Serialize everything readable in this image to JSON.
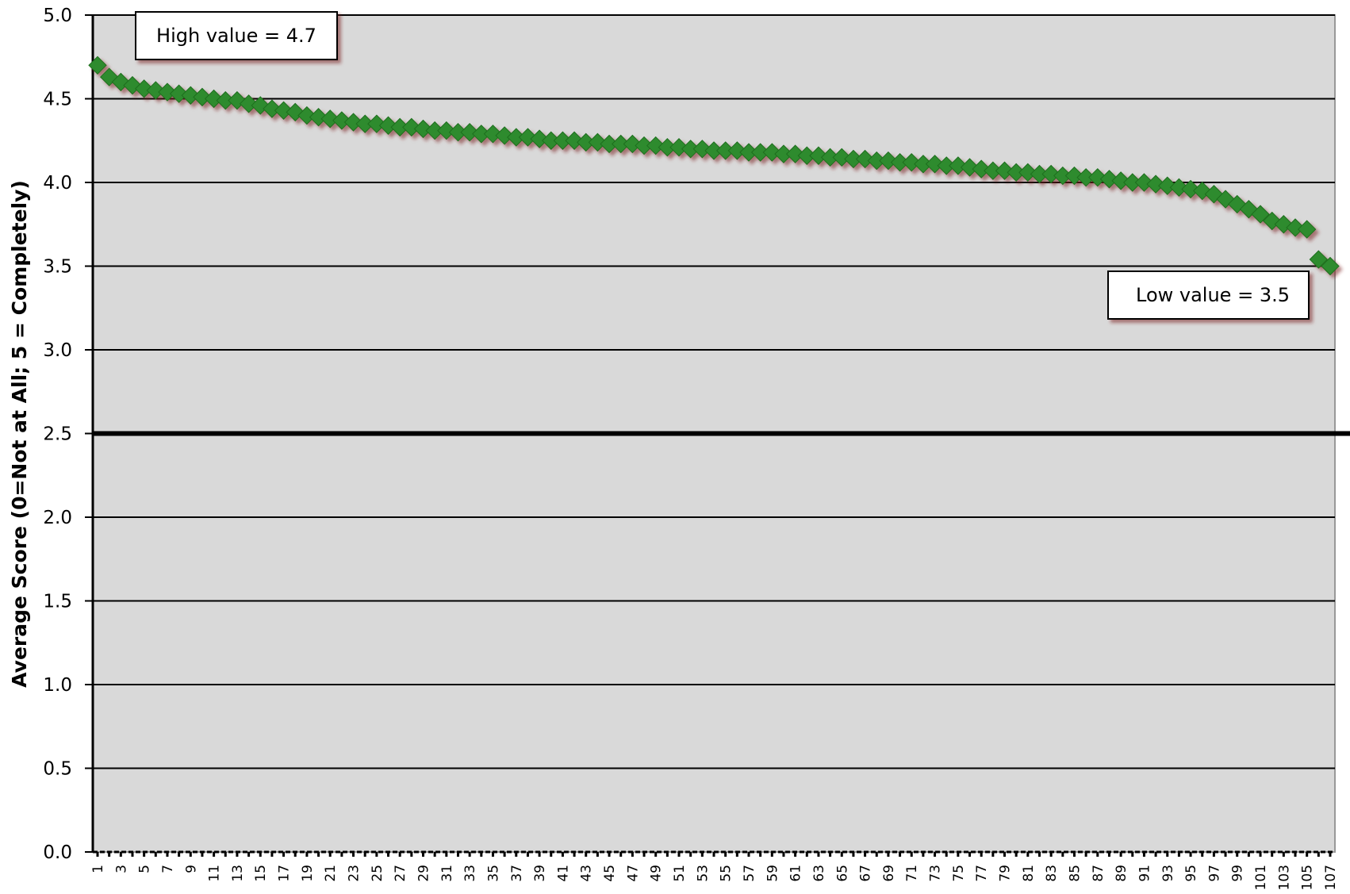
{
  "chart_data": {
    "type": "scatter",
    "title": "",
    "xlabel": "",
    "ylabel": "Average Score (0=Not at All; 5 = Completely)",
    "xlim": [
      1,
      107
    ],
    "ylim": [
      0,
      5
    ],
    "yticks": [
      "0.0",
      "0.5",
      "1.0",
      "1.5",
      "2.0",
      "2.5",
      "3.0",
      "3.5",
      "4.0",
      "4.5",
      "5.0"
    ],
    "xticks": [
      "1",
      "3",
      "5",
      "7",
      "9",
      "11",
      "13",
      "15",
      "17",
      "19",
      "21",
      "23",
      "25",
      "27",
      "29",
      "31",
      "33",
      "35",
      "37",
      "39",
      "41",
      "43",
      "45",
      "47",
      "49",
      "51",
      "53",
      "55",
      "57",
      "59",
      "61",
      "63",
      "65",
      "67",
      "69",
      "71",
      "73",
      "75",
      "77",
      "79",
      "81",
      "83",
      "85",
      "87",
      "89",
      "91",
      "93",
      "95",
      "97",
      "99",
      "101",
      "103",
      "105",
      "107"
    ],
    "grid": true,
    "reference_line": 2.5,
    "background_color": "#d9d9d9",
    "marker_color": "#2e8b2e",
    "reference_line_color": "#000000",
    "annotations": [
      {
        "text": "High value = 4.7"
      },
      {
        "text": "Low value = 3.5"
      }
    ],
    "series": [
      {
        "x": [
          1,
          2,
          3,
          4,
          5,
          6,
          7,
          8,
          9,
          10,
          11,
          12,
          13,
          14,
          15,
          16,
          17,
          18,
          19,
          20,
          21,
          22,
          23,
          24,
          25,
          26,
          27,
          28,
          29,
          30,
          31,
          32,
          33,
          34,
          35,
          36,
          37,
          38,
          39,
          40,
          41,
          42,
          43,
          44,
          45,
          46,
          47,
          48,
          49,
          50,
          51,
          52,
          53,
          54,
          55,
          56,
          57,
          58,
          59,
          60,
          61,
          62,
          63,
          64,
          65,
          66,
          67,
          68,
          69,
          70,
          71,
          72,
          73,
          74,
          75,
          76,
          77,
          78,
          79,
          80,
          81,
          82,
          83,
          84,
          85,
          86,
          87,
          88,
          89,
          90,
          91,
          92,
          93,
          94,
          95,
          96,
          97,
          98,
          99,
          100,
          101,
          102,
          103,
          104,
          105,
          106,
          107
        ],
        "values": [
          4.7,
          4.63,
          4.6,
          4.58,
          4.56,
          4.55,
          4.54,
          4.53,
          4.52,
          4.51,
          4.5,
          4.49,
          4.49,
          4.47,
          4.46,
          4.44,
          4.43,
          4.42,
          4.4,
          4.39,
          4.38,
          4.37,
          4.36,
          4.35,
          4.35,
          4.34,
          4.33,
          4.33,
          4.32,
          4.31,
          4.31,
          4.3,
          4.3,
          4.29,
          4.29,
          4.28,
          4.27,
          4.27,
          4.26,
          4.25,
          4.25,
          4.25,
          4.24,
          4.24,
          4.23,
          4.23,
          4.23,
          4.22,
          4.22,
          4.21,
          4.21,
          4.2,
          4.2,
          4.19,
          4.19,
          4.19,
          4.18,
          4.18,
          4.18,
          4.17,
          4.17,
          4.16,
          4.16,
          4.15,
          4.15,
          4.14,
          4.14,
          4.13,
          4.13,
          4.12,
          4.12,
          4.11,
          4.11,
          4.1,
          4.1,
          4.09,
          4.08,
          4.07,
          4.07,
          4.06,
          4.06,
          4.05,
          4.05,
          4.04,
          4.04,
          4.03,
          4.03,
          4.02,
          4.01,
          4.0,
          4.0,
          3.99,
          3.98,
          3.97,
          3.96,
          3.95,
          3.93,
          3.9,
          3.87,
          3.84,
          3.81,
          3.77,
          3.75,
          3.73,
          3.72,
          3.54,
          3.5
        ]
      }
    ]
  }
}
